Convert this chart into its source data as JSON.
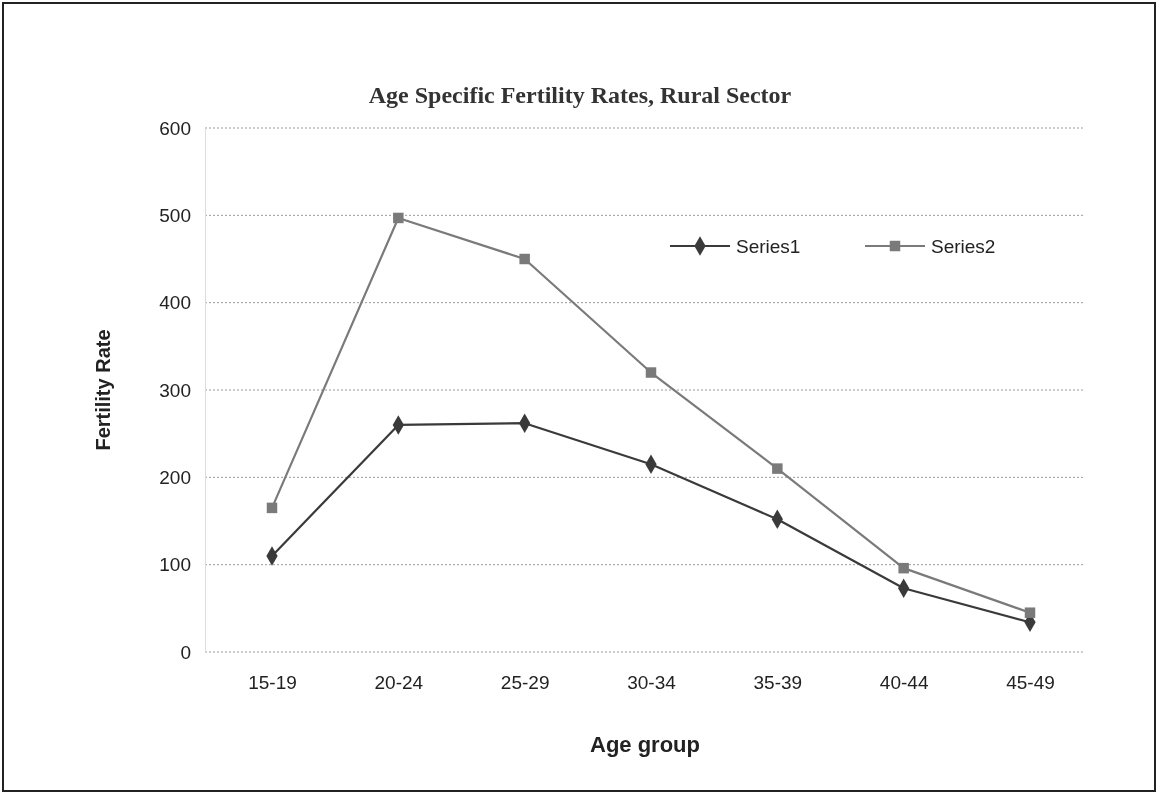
{
  "chart_data": {
    "type": "line",
    "title": "Age Specific Fertility Rates, Rural Sector",
    "xlabel": "Age group",
    "ylabel": "Fertility Rate",
    "categories": [
      "15-19",
      "20-24",
      "25-29",
      "30-34",
      "35-39",
      "40-44",
      "45-49"
    ],
    "series": [
      {
        "name": "Series1",
        "color": "#3a3a3a",
        "marker": "diamond",
        "values": [
          110,
          260,
          262,
          215,
          152,
          73,
          34
        ]
      },
      {
        "name": "Series2",
        "color": "#7a7a7a",
        "marker": "square",
        "values": [
          165,
          497,
          450,
          320,
          210,
          96,
          45
        ]
      }
    ],
    "ylim": [
      0,
      600
    ],
    "yticks": [
      0,
      100,
      200,
      300,
      400,
      500,
      600
    ],
    "grid": "y",
    "legend": "top right",
    "line_style": "solid"
  }
}
